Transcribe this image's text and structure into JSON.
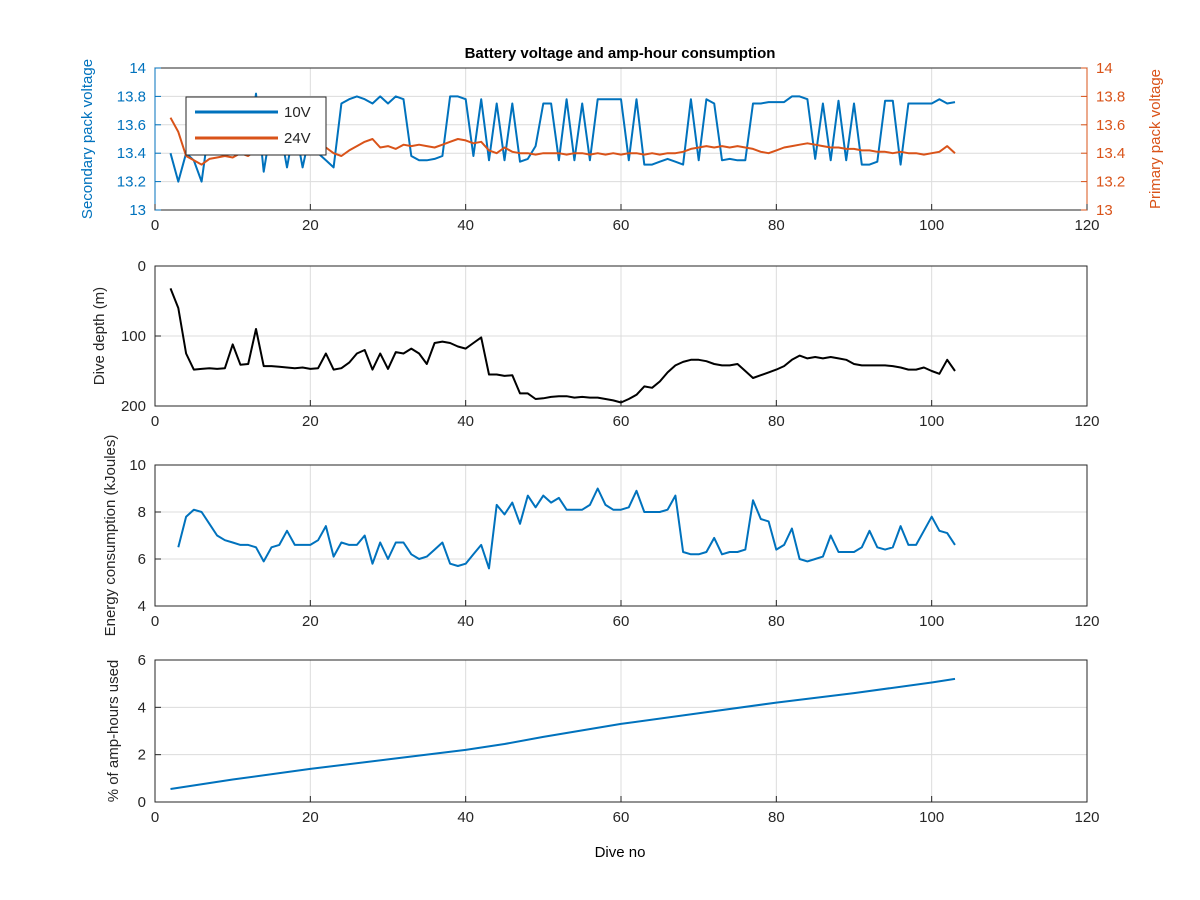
{
  "figure": {
    "title": "Battery voltage and amp-hour consumption",
    "xlabel": "Dive no",
    "colors": {
      "blue": "#0072BD",
      "orange": "#D95319",
      "black": "#000000",
      "grid": "#dcdcdc"
    }
  },
  "chart_data": [
    {
      "type": "line",
      "title": "Battery voltage and amp-hour consumption",
      "xlabel": "",
      "ylabel_left": "Secondary pack voltage",
      "ylabel_right": "Primary pack voltage",
      "xlim": [
        0,
        120
      ],
      "ylim": [
        13,
        14
      ],
      "ylim_right": [
        13,
        14
      ],
      "xticks": [
        0,
        20,
        40,
        60,
        80,
        100,
        120
      ],
      "yticks": [
        13,
        13.2,
        13.4,
        13.6,
        13.8,
        14
      ],
      "ytick_labels": [
        "13",
        "13.2",
        "13.4",
        "13.6",
        "13.8",
        "14"
      ],
      "grid": true,
      "legend_position": "top-left",
      "series": [
        {
          "name": "10V",
          "color": "#0072BD",
          "axis": "left",
          "x": [
            2,
            3,
            4,
            5,
            6,
            7,
            8,
            9,
            10,
            11,
            12,
            13,
            14,
            15,
            16,
            17,
            18,
            19,
            20,
            21,
            22,
            23,
            24,
            25,
            26,
            27,
            28,
            29,
            30,
            31,
            32,
            33,
            34,
            35,
            36,
            37,
            38,
            39,
            40,
            41,
            42,
            43,
            44,
            45,
            46,
            47,
            48,
            49,
            50,
            51,
            52,
            53,
            54,
            55,
            56,
            57,
            58,
            59,
            60,
            61,
            62,
            63,
            64,
            65,
            66,
            67,
            68,
            69,
            70,
            71,
            72,
            73,
            74,
            75,
            76,
            77,
            78,
            79,
            80,
            81,
            82,
            83,
            84,
            85,
            86,
            87,
            88,
            89,
            90,
            91,
            92,
            93,
            94,
            95,
            96,
            97,
            98,
            99,
            100,
            101,
            102,
            103
          ],
          "y": [
            13.4,
            13.2,
            13.4,
            13.35,
            13.2,
            13.6,
            13.4,
            13.6,
            13.4,
            13.6,
            13.4,
            13.82,
            13.27,
            13.6,
            13.6,
            13.3,
            13.6,
            13.3,
            13.55,
            13.4,
            13.35,
            13.3,
            13.75,
            13.78,
            13.8,
            13.78,
            13.75,
            13.8,
            13.75,
            13.8,
            13.78,
            13.38,
            13.35,
            13.35,
            13.36,
            13.38,
            13.8,
            13.8,
            13.78,
            13.38,
            13.78,
            13.35,
            13.75,
            13.35,
            13.75,
            13.34,
            13.36,
            13.45,
            13.75,
            13.75,
            13.35,
            13.78,
            13.35,
            13.75,
            13.35,
            13.78,
            13.78,
            13.78,
            13.78,
            13.35,
            13.78,
            13.32,
            13.32,
            13.34,
            13.36,
            13.34,
            13.32,
            13.78,
            13.35,
            13.78,
            13.75,
            13.35,
            13.36,
            13.35,
            13.35,
            13.75,
            13.75,
            13.76,
            13.76,
            13.76,
            13.8,
            13.8,
            13.78,
            13.36,
            13.75,
            13.35,
            13.77,
            13.35,
            13.75,
            13.32,
            13.32,
            13.34,
            13.77,
            13.77,
            13.32,
            13.75,
            13.75,
            13.75,
            13.75,
            13.78,
            13.75,
            13.76
          ]
        },
        {
          "name": "24V",
          "color": "#D95319",
          "axis": "right",
          "x": [
            2,
            3,
            4,
            5,
            6,
            7,
            8,
            9,
            10,
            11,
            12,
            13,
            14,
            15,
            16,
            17,
            18,
            19,
            20,
            21,
            22,
            23,
            24,
            25,
            26,
            27,
            28,
            29,
            30,
            31,
            32,
            33,
            34,
            35,
            36,
            37,
            38,
            39,
            40,
            41,
            42,
            43,
            44,
            45,
            46,
            47,
            48,
            49,
            50,
            51,
            52,
            53,
            54,
            55,
            56,
            57,
            58,
            59,
            60,
            61,
            62,
            63,
            64,
            65,
            66,
            67,
            68,
            69,
            70,
            71,
            72,
            73,
            74,
            75,
            76,
            77,
            78,
            79,
            80,
            81,
            82,
            83,
            84,
            85,
            86,
            87,
            88,
            89,
            90,
            91,
            92,
            93,
            94,
            95,
            96,
            97,
            98,
            99,
            100,
            101,
            102,
            103
          ],
          "y": [
            13.65,
            13.55,
            13.38,
            13.35,
            13.32,
            13.36,
            13.37,
            13.38,
            13.37,
            13.4,
            13.38,
            13.42,
            13.45,
            13.43,
            13.42,
            13.46,
            13.43,
            13.44,
            13.42,
            13.45,
            13.44,
            13.4,
            13.38,
            13.42,
            13.45,
            13.48,
            13.5,
            13.44,
            13.45,
            13.43,
            13.46,
            13.45,
            13.46,
            13.45,
            13.44,
            13.46,
            13.48,
            13.5,
            13.49,
            13.47,
            13.48,
            13.42,
            13.4,
            13.44,
            13.41,
            13.4,
            13.4,
            13.39,
            13.4,
            13.4,
            13.4,
            13.39,
            13.4,
            13.4,
            13.39,
            13.4,
            13.39,
            13.4,
            13.39,
            13.4,
            13.4,
            13.39,
            13.4,
            13.39,
            13.4,
            13.4,
            13.41,
            13.43,
            13.44,
            13.45,
            13.44,
            13.45,
            13.44,
            13.45,
            13.44,
            13.43,
            13.41,
            13.4,
            13.42,
            13.44,
            13.45,
            13.46,
            13.47,
            13.46,
            13.45,
            13.44,
            13.44,
            13.43,
            13.43,
            13.42,
            13.42,
            13.41,
            13.41,
            13.4,
            13.41,
            13.4,
            13.4,
            13.39,
            13.4,
            13.41,
            13.45,
            13.4
          ]
        }
      ]
    },
    {
      "type": "line",
      "ylabel": "Dive depth (m)",
      "xlim": [
        0,
        120
      ],
      "ylim": [
        0,
        200
      ],
      "y_reversed": true,
      "xticks": [
        0,
        20,
        40,
        60,
        80,
        100,
        120
      ],
      "yticks": [
        0,
        100,
        200
      ],
      "ytick_labels": [
        "0",
        "100",
        "200"
      ],
      "grid": true,
      "series": [
        {
          "color": "#000000",
          "x": [
            2,
            3,
            4,
            5,
            6,
            7,
            8,
            9,
            10,
            11,
            12,
            13,
            14,
            15,
            16,
            17,
            18,
            19,
            20,
            21,
            22,
            23,
            24,
            25,
            26,
            27,
            28,
            29,
            30,
            31,
            32,
            33,
            34,
            35,
            36,
            37,
            38,
            39,
            40,
            41,
            42,
            43,
            44,
            45,
            46,
            47,
            48,
            49,
            50,
            51,
            52,
            53,
            54,
            55,
            56,
            57,
            58,
            59,
            60,
            61,
            62,
            63,
            64,
            65,
            66,
            67,
            68,
            69,
            70,
            71,
            72,
            73,
            74,
            75,
            76,
            77,
            78,
            79,
            80,
            81,
            82,
            83,
            84,
            85,
            86,
            87,
            88,
            89,
            90,
            91,
            92,
            93,
            94,
            95,
            96,
            97,
            98,
            99,
            100,
            101,
            102,
            103
          ],
          "y": [
            32,
            60,
            125,
            148,
            147,
            146,
            147,
            146,
            112,
            141,
            140,
            90,
            143,
            143,
            144,
            145,
            146,
            145,
            147,
            146,
            125,
            148,
            146,
            138,
            125,
            120,
            148,
            125,
            147,
            123,
            125,
            118,
            125,
            140,
            110,
            108,
            110,
            115,
            118,
            110,
            102,
            155,
            155,
            157,
            156,
            182,
            182,
            190,
            189,
            187,
            186,
            186,
            188,
            187,
            188,
            188,
            190,
            192,
            195,
            190,
            184,
            172,
            174,
            165,
            152,
            142,
            137,
            134,
            134,
            136,
            140,
            142,
            142,
            140,
            150,
            160,
            156,
            152,
            148,
            143,
            134,
            128,
            132,
            130,
            132,
            130,
            132,
            134,
            140,
            142,
            142,
            142,
            142,
            143,
            145,
            148,
            148,
            145,
            150,
            154,
            134,
            150
          ]
        }
      ]
    },
    {
      "type": "line",
      "ylabel": "Energy consumption (kJoules)",
      "xlim": [
        0,
        120
      ],
      "ylim": [
        4,
        10
      ],
      "xticks": [
        0,
        20,
        40,
        60,
        80,
        100,
        120
      ],
      "yticks": [
        4,
        6,
        8,
        10
      ],
      "ytick_labels": [
        "4",
        "6",
        "8",
        "10"
      ],
      "grid": true,
      "series": [
        {
          "color": "#0072BD",
          "x": [
            3,
            4,
            5,
            6,
            7,
            8,
            9,
            10,
            11,
            12,
            13,
            14,
            15,
            16,
            17,
            18,
            19,
            20,
            21,
            22,
            23,
            24,
            25,
            26,
            27,
            28,
            29,
            30,
            31,
            32,
            33,
            34,
            35,
            36,
            37,
            38,
            39,
            40,
            41,
            42,
            43,
            44,
            45,
            46,
            47,
            48,
            49,
            50,
            51,
            52,
            53,
            54,
            55,
            56,
            57,
            58,
            59,
            60,
            61,
            62,
            63,
            64,
            65,
            66,
            67,
            68,
            69,
            70,
            71,
            72,
            73,
            74,
            75,
            76,
            77,
            78,
            79,
            80,
            81,
            82,
            83,
            84,
            85,
            86,
            87,
            88,
            89,
            90,
            91,
            92,
            93,
            94,
            95,
            96,
            97,
            98,
            99,
            100,
            101,
            102,
            103
          ],
          "y": [
            6.5,
            7.8,
            8.1,
            8.0,
            7.5,
            7.0,
            6.8,
            6.7,
            6.6,
            6.6,
            6.5,
            5.9,
            6.5,
            6.6,
            7.2,
            6.6,
            6.6,
            6.6,
            6.8,
            7.4,
            6.1,
            6.7,
            6.6,
            6.6,
            7.0,
            5.8,
            6.7,
            6.0,
            6.7,
            6.7,
            6.2,
            6.0,
            6.1,
            6.4,
            6.7,
            5.8,
            5.7,
            5.8,
            6.2,
            6.6,
            5.6,
            8.3,
            7.9,
            8.4,
            7.5,
            8.7,
            8.2,
            8.7,
            8.4,
            8.6,
            8.1,
            8.1,
            8.1,
            8.3,
            9.0,
            8.3,
            8.1,
            8.1,
            8.2,
            8.9,
            8.0,
            8.0,
            8.0,
            8.1,
            8.7,
            6.3,
            6.2,
            6.2,
            6.3,
            6.9,
            6.2,
            6.3,
            6.3,
            6.4,
            8.5,
            7.7,
            7.6,
            6.4,
            6.6,
            7.3,
            6.0,
            5.9,
            6.0,
            6.1,
            7.0,
            6.3,
            6.3,
            6.3,
            6.5,
            7.2,
            6.5,
            6.4,
            6.5,
            7.4,
            6.6,
            6.6,
            7.2,
            7.8,
            7.2,
            7.1,
            6.6
          ]
        }
      ]
    },
    {
      "type": "line",
      "ylabel": "% of amp-hours used",
      "xlabel": "Dive no",
      "xlim": [
        0,
        120
      ],
      "ylim": [
        0,
        6
      ],
      "xticks": [
        0,
        20,
        40,
        60,
        80,
        100,
        120
      ],
      "yticks": [
        0,
        2,
        4,
        6
      ],
      "ytick_labels": [
        "0",
        "2",
        "4",
        "6"
      ],
      "grid": true,
      "series": [
        {
          "color": "#0072BD",
          "x": [
            2,
            10,
            20,
            30,
            40,
            45,
            50,
            60,
            70,
            80,
            90,
            100,
            103
          ],
          "y": [
            0.55,
            0.95,
            1.4,
            1.8,
            2.2,
            2.45,
            2.75,
            3.3,
            3.75,
            4.2,
            4.6,
            5.05,
            5.2
          ]
        }
      ]
    }
  ]
}
